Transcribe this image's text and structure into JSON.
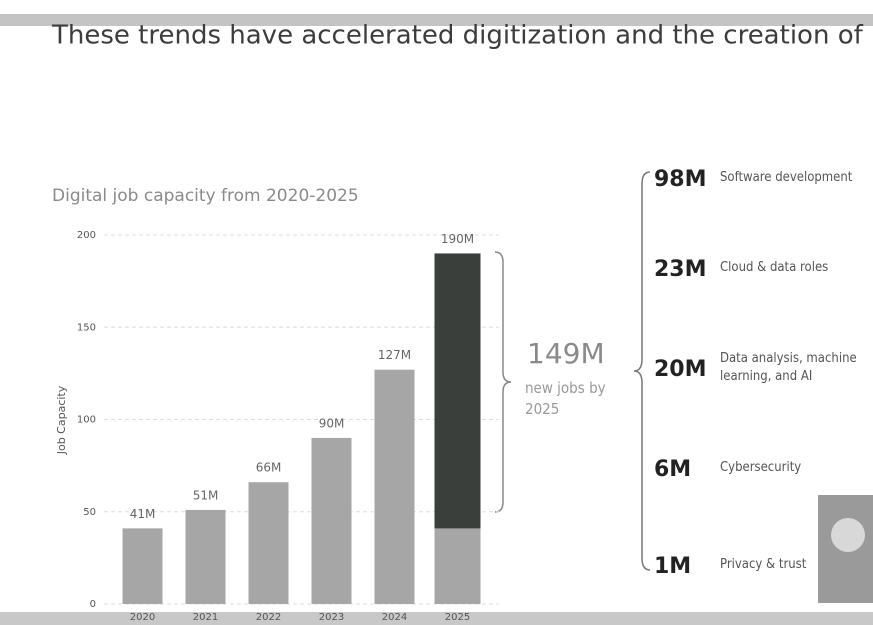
{
  "chart_data": {
    "type": "bar",
    "title": "These trends have accelerated digitization and the creation of new jobs",
    "subtitle": "Digital job capacity from 2020-2025",
    "y_label": "Job Capacity",
    "categories": [
      "2020",
      "2021",
      "2022",
      "2023",
      "2024",
      "2025"
    ],
    "values": [
      41,
      51,
      66,
      90,
      127,
      190
    ],
    "value_labels": [
      "41M",
      "51M",
      "66M",
      "90M",
      "127M",
      "190M"
    ],
    "color": "#a6a6a6",
    "highlight_color": "#3a3f3c",
    "ylim": [
      0,
      200
    ],
    "yticks": [
      0,
      50,
      100,
      150,
      200
    ],
    "grid": true,
    "annotation": {
      "value": 149,
      "label": "149M",
      "text": "new jobs by 2025"
    },
    "breakdown": [
      {
        "value": "98M",
        "label": "Software development"
      },
      {
        "value": "23M",
        "label": "Cloud & data roles"
      },
      {
        "value": "20M",
        "label": "Data analysis, machine learning, and AI"
      },
      {
        "value": "6M",
        "label": "Cybersecurity"
      },
      {
        "value": "1M",
        "label": "Privacy & trust"
      }
    ]
  }
}
